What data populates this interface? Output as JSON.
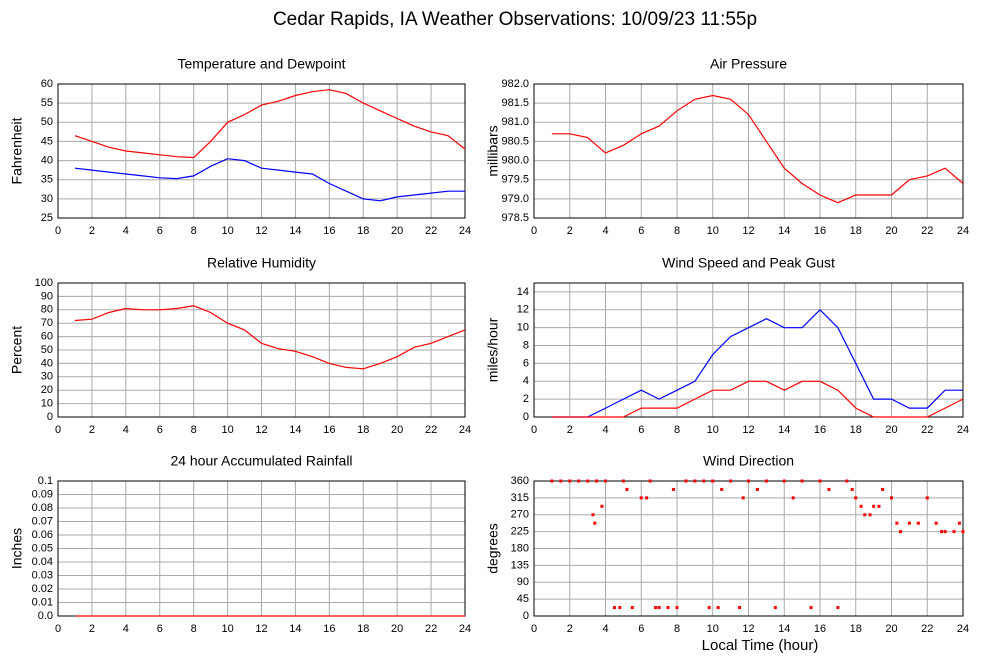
{
  "title": "Cedar Rapids, IA Weather Observations: 10/09/23 11:55p",
  "xlabel": "Local Time (hour)",
  "chart_data": [
    {
      "type": "line",
      "title": "Temperature and Dewpoint",
      "ylabel": "Fahrenheit",
      "xlim": [
        0,
        24
      ],
      "xticks": [
        0,
        2,
        4,
        6,
        8,
        10,
        12,
        14,
        16,
        18,
        20,
        22,
        24
      ],
      "ylim": [
        25,
        60
      ],
      "yticks": [
        25,
        30,
        35,
        40,
        45,
        50,
        55,
        60
      ],
      "grid": true,
      "series": [
        {
          "color": "#ff0000",
          "x": [
            1,
            2,
            3,
            4,
            5,
            6,
            7,
            8,
            9,
            10,
            11,
            12,
            13,
            14,
            15,
            16,
            17,
            18,
            19,
            20,
            21,
            22,
            23,
            24
          ],
          "values": [
            46.5,
            45,
            43.5,
            42.5,
            42,
            41.5,
            41,
            40.8,
            45,
            50,
            52,
            54.5,
            55.5,
            57,
            58,
            58.5,
            57.5,
            55,
            53,
            51,
            49,
            47.5,
            46.5,
            43
          ]
        },
        {
          "color": "#0000ff",
          "x": [
            1,
            2,
            3,
            4,
            5,
            6,
            7,
            8,
            9,
            10,
            11,
            12,
            13,
            14,
            15,
            16,
            17,
            18,
            19,
            20,
            21,
            22,
            23,
            24
          ],
          "values": [
            38,
            37.5,
            37,
            36.5,
            36,
            35.5,
            35.3,
            36,
            38.5,
            40.5,
            40,
            38,
            37.5,
            37,
            36.5,
            34,
            32,
            30,
            29.5,
            30.5,
            31,
            31.5,
            32,
            32
          ]
        }
      ]
    },
    {
      "type": "line",
      "title": "Air Pressure",
      "ylabel": "millibars",
      "xlim": [
        0,
        24
      ],
      "xticks": [
        0,
        2,
        4,
        6,
        8,
        10,
        12,
        14,
        16,
        18,
        20,
        22,
        24
      ],
      "ylim": [
        978.5,
        982.0
      ],
      "yticks": [
        978.5,
        {
          "value": 979,
          "label": "979.0"
        },
        979.5,
        {
          "value": 980,
          "label": "980.0"
        },
        980.5,
        {
          "value": 981,
          "label": "981.0"
        },
        981.5,
        {
          "value": 982,
          "label": "982.0"
        }
      ],
      "grid": true,
      "series": [
        {
          "color": "#ff0000",
          "x": [
            1,
            2,
            3,
            4,
            5,
            6,
            7,
            8,
            9,
            10,
            11,
            12,
            13,
            14,
            15,
            16,
            17,
            18,
            19,
            20,
            21,
            22,
            23,
            24
          ],
          "values": [
            980.7,
            980.7,
            980.6,
            980.2,
            980.4,
            980.7,
            980.9,
            981.3,
            981.6,
            981.7,
            981.6,
            981.2,
            980.5,
            979.8,
            979.4,
            979.1,
            978.9,
            979.1,
            979.1,
            979.1,
            979.5,
            979.6,
            979.8,
            979.4
          ]
        }
      ]
    },
    {
      "type": "line",
      "title": "Relative Humidity",
      "ylabel": "Percent",
      "xlim": [
        0,
        24
      ],
      "xticks": [
        0,
        2,
        4,
        6,
        8,
        10,
        12,
        14,
        16,
        18,
        20,
        22,
        24
      ],
      "ylim": [
        0,
        100
      ],
      "yticks": [
        0,
        10,
        20,
        30,
        40,
        50,
        60,
        70,
        80,
        90,
        100
      ],
      "grid": true,
      "series": [
        {
          "color": "#ff0000",
          "x": [
            1,
            2,
            3,
            4,
            5,
            6,
            7,
            8,
            9,
            10,
            11,
            12,
            13,
            14,
            15,
            16,
            17,
            18,
            19,
            20,
            21,
            22,
            23,
            24
          ],
          "values": [
            72,
            73,
            78,
            81,
            80,
            80,
            81,
            83,
            78,
            70,
            65,
            55,
            51,
            49,
            45,
            40,
            37,
            36,
            40,
            45,
            52,
            55,
            60,
            65
          ]
        }
      ]
    },
    {
      "type": "line",
      "title": "Wind Speed and Peak Gust",
      "ylabel": "miles/hour",
      "xlim": [
        0,
        24
      ],
      "xticks": [
        0,
        2,
        4,
        6,
        8,
        10,
        12,
        14,
        16,
        18,
        20,
        22,
        24
      ],
      "ylim": [
        0,
        15
      ],
      "yticks": [
        0,
        2,
        4,
        6,
        8,
        10,
        12,
        14
      ],
      "grid": true,
      "series": [
        {
          "color": "#0000ff",
          "x": [
            1,
            2,
            3,
            4,
            5,
            6,
            7,
            8,
            9,
            10,
            11,
            12,
            13,
            14,
            15,
            16,
            17,
            18,
            19,
            20,
            21,
            22,
            23,
            24
          ],
          "values": [
            0,
            0,
            0,
            1,
            2,
            3,
            2,
            3,
            4,
            7,
            9,
            10,
            11,
            10,
            10,
            12,
            10,
            6,
            2,
            2,
            1,
            1,
            3,
            3
          ]
        },
        {
          "color": "#ff0000",
          "x": [
            1,
            2,
            3,
            4,
            5,
            6,
            7,
            8,
            9,
            10,
            11,
            12,
            13,
            14,
            15,
            16,
            17,
            18,
            19,
            20,
            21,
            22,
            23,
            24
          ],
          "values": [
            0,
            0,
            0,
            0,
            0,
            1,
            1,
            1,
            2,
            3,
            3,
            4,
            4,
            3,
            4,
            4,
            3,
            1,
            0,
            0,
            0,
            0,
            1,
            2
          ]
        }
      ]
    },
    {
      "type": "line",
      "title": "24 hour Accumulated Rainfall",
      "ylabel": "Inches",
      "xlim": [
        0,
        24
      ],
      "xticks": [
        0,
        2,
        4,
        6,
        8,
        10,
        12,
        14,
        16,
        18,
        20,
        22,
        24
      ],
      "ylim": [
        0,
        0.1
      ],
      "yticks": [
        {
          "value": 0,
          "label": "0.0"
        },
        0.01,
        0.02,
        0.03,
        0.04,
        0.05,
        0.06,
        0.07,
        0.08,
        0.09,
        0.1
      ],
      "grid": true,
      "series": [
        {
          "color": "#ff0000",
          "x": [
            1,
            24
          ],
          "values": [
            0,
            0
          ]
        }
      ]
    },
    {
      "type": "scatter",
      "title": "Wind Direction",
      "ylabel": "degrees",
      "xlim": [
        0,
        24
      ],
      "xticks": [
        0,
        2,
        4,
        6,
        8,
        10,
        12,
        14,
        16,
        18,
        20,
        22,
        24
      ],
      "ylim": [
        0,
        360
      ],
      "yticks": [
        0,
        45,
        90,
        135,
        180,
        225,
        270,
        315,
        360
      ],
      "grid": true,
      "color": "#ff0000",
      "x": [
        1,
        1.5,
        2,
        2.5,
        3,
        3.3,
        3.4,
        3.5,
        3.8,
        4,
        4.5,
        4.8,
        5,
        5.2,
        5.5,
        6,
        6.3,
        6.5,
        6.8,
        7,
        7.5,
        7.8,
        8,
        8.5,
        9,
        9.5,
        9.8,
        10,
        10.3,
        10.5,
        11,
        11.5,
        11.7,
        12,
        12.5,
        13,
        13.5,
        14,
        14.5,
        15,
        15.5,
        16,
        16.5,
        17,
        17.5,
        17.8,
        18,
        18.3,
        18.5,
        18.8,
        19,
        19.3,
        19.5,
        20,
        20.3,
        20.5,
        21,
        21.5,
        22,
        22.5,
        22.8,
        23,
        23.5,
        23.8,
        24
      ],
      "values": [
        360,
        360,
        360,
        360,
        360,
        270,
        247.5,
        360,
        292.5,
        360,
        22.5,
        22.5,
        360,
        337.5,
        22.5,
        315,
        315,
        360,
        22.5,
        22.5,
        22.5,
        337.5,
        22.5,
        360,
        360,
        360,
        22.5,
        360,
        22.5,
        337.5,
        360,
        22.5,
        315,
        360,
        337.5,
        360,
        22.5,
        360,
        315,
        360,
        22.5,
        360,
        337.5,
        22.5,
        360,
        337.5,
        315,
        292.5,
        270,
        270,
        292.5,
        292.5,
        337.5,
        315,
        247.5,
        225,
        247.5,
        247.5,
        315,
        247.5,
        225,
        225,
        225,
        247.5,
        225
      ]
    }
  ]
}
